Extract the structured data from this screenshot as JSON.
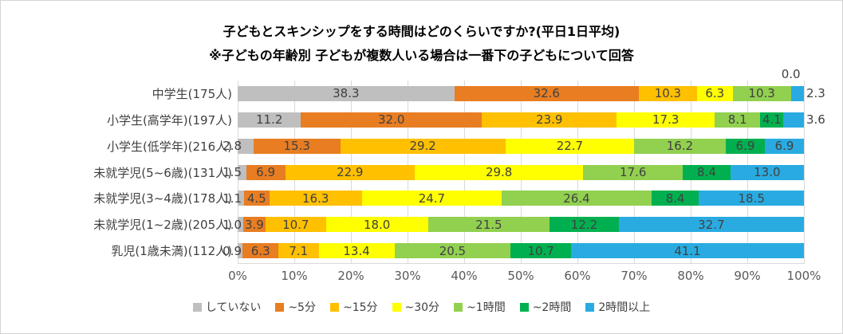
{
  "title": "子どもとスキンシップをする時間はどのくらいですか?(平日1日平均)",
  "subtitle": "※子どもの年齢別 子どもが複数人いる場合は一番下の子どもについて回答",
  "chart_data": {
    "type": "bar",
    "variant": "100pct-stacked-horizontal",
    "unit": "percent",
    "xlim": [
      0,
      100
    ],
    "x_ticks": [
      "0%",
      "10%",
      "20%",
      "30%",
      "40%",
      "50%",
      "60%",
      "70%",
      "80%",
      "90%",
      "100%"
    ],
    "grid": true,
    "legend_position": "bottom",
    "categories": [
      "中学生(175人)",
      "小学生(高学年)(197人)",
      "小学生(低学年)(216人)",
      "未就学児(5~6歳)(131人)",
      "未就学児(3~4歳)(178人)",
      "未就学児(1~2歳)(205人)",
      "乳児(1歳未満)(112人)"
    ],
    "series": [
      {
        "name": "していない",
        "color": "#BFBFBF",
        "values": [
          38.3,
          11.2,
          2.8,
          1.5,
          1.1,
          1.0,
          0.9
        ]
      },
      {
        "name": "~5分",
        "color": "#E87D22",
        "values": [
          32.6,
          32.0,
          15.3,
          6.9,
          4.5,
          3.9,
          6.3
        ]
      },
      {
        "name": "~15分",
        "color": "#FFC000",
        "values": [
          10.3,
          23.9,
          29.2,
          22.9,
          16.3,
          10.7,
          7.1
        ]
      },
      {
        "name": "~30分",
        "color": "#FFFF00",
        "values": [
          6.3,
          17.3,
          22.7,
          29.8,
          24.7,
          18.0,
          13.4
        ]
      },
      {
        "name": "~1時間",
        "color": "#92D050",
        "values": [
          10.3,
          8.1,
          16.2,
          17.6,
          26.4,
          21.5,
          20.5
        ]
      },
      {
        "name": "~2時間",
        "color": "#00B050",
        "values": [
          0.0,
          4.1,
          6.9,
          8.4,
          8.4,
          12.2,
          10.7
        ]
      },
      {
        "name": "2時間以上",
        "color": "#29ABE2",
        "values": [
          2.3,
          3.6,
          6.9,
          13.0,
          18.5,
          32.7,
          41.1
        ]
      }
    ],
    "zero_callout": {
      "category_index": 0,
      "series_index": 5,
      "text": "0.0"
    },
    "label_colors": {
      "data_label": "#404040",
      "tick_label": "#595959",
      "grid": "#D9D9D9"
    }
  }
}
